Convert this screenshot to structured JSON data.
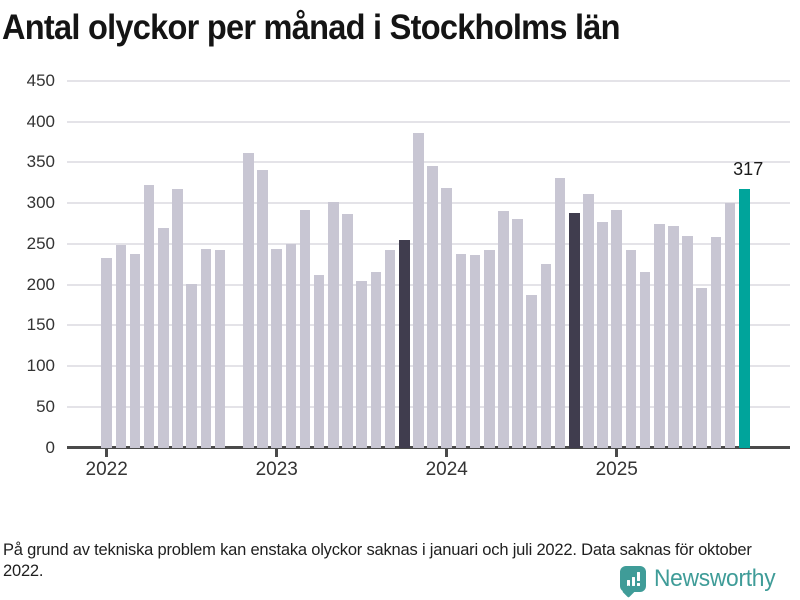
{
  "title": "Antal olyckor per månad i Stockholms län",
  "footnote": "På grund av tekniska problem kan enstaka olyckor saknas i januari och juli 2022. Data saknas för oktober 2022.",
  "branding": {
    "name": "Newsworthy"
  },
  "colors": {
    "bar_default": "#c8c6d3",
    "bar_highlight_dark": "#403d4e",
    "bar_current": "#00a49b",
    "gridline": "#e4e3e8",
    "axis": "#4a4a4a",
    "tick_label": "#333333",
    "brand_teal": "#3f9c98"
  },
  "chart_data": {
    "type": "bar",
    "title": "Antal olyckor per månad i Stockholms län",
    "xlabel": "",
    "ylabel": "",
    "ylim": [
      0,
      450
    ],
    "grid": "horizontal",
    "legend": "none",
    "y_ticks": [
      0,
      50,
      100,
      150,
      200,
      250,
      300,
      350,
      400,
      450
    ],
    "categories": [
      "2022-01",
      "2022-02",
      "2022-03",
      "2022-04",
      "2022-05",
      "2022-06",
      "2022-07",
      "2022-08",
      "2022-09",
      "2022-10",
      "2022-11",
      "2022-12",
      "2023-01",
      "2023-02",
      "2023-03",
      "2023-04",
      "2023-05",
      "2023-06",
      "2023-07",
      "2023-08",
      "2023-09",
      "2023-10",
      "2023-11",
      "2023-12",
      "2024-01",
      "2024-02",
      "2024-03",
      "2024-04",
      "2024-05",
      "2024-06",
      "2024-07",
      "2024-08",
      "2024-09",
      "2024-10",
      "2024-11",
      "2024-12",
      "2025-01",
      "2025-02",
      "2025-03",
      "2025-04",
      "2025-05",
      "2025-06",
      "2025-07",
      "2025-08",
      "2025-09",
      "2025-10"
    ],
    "values": [
      233,
      249,
      238,
      322,
      270,
      318,
      201,
      244,
      243,
      null,
      362,
      341,
      244,
      250,
      292,
      212,
      302,
      287,
      205,
      216,
      243,
      255,
      386,
      346,
      319,
      238,
      236,
      242,
      290,
      281,
      187,
      226,
      331,
      288,
      311,
      277,
      292,
      243,
      215,
      274,
      272,
      260,
      196,
      258,
      300,
      317
    ],
    "missing_categories": [
      "2022-10"
    ],
    "highlight_dark_categories": [
      "2023-10",
      "2024-10"
    ],
    "current_category": "2025-10",
    "annotation": {
      "category": "2025-10",
      "label": "317"
    },
    "x_ticks": [
      {
        "category": "2022-01",
        "label": "2022"
      },
      {
        "category": "2023-01",
        "label": "2023"
      },
      {
        "category": "2024-01",
        "label": "2024"
      },
      {
        "category": "2025-01",
        "label": "2025"
      }
    ]
  }
}
